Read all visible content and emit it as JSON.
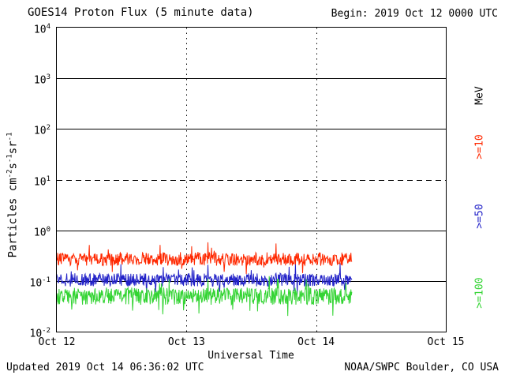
{
  "header": {
    "title": "GOES14 Proton Flux (5 minute data)",
    "begin_label": "Begin: 2019 Oct 12 0000 UTC"
  },
  "footer": {
    "updated": "Updated 2019 Oct 14 06:36:02 UTC",
    "source": "NOAA/SWPC Boulder, CO USA"
  },
  "chart_data": {
    "type": "line",
    "title": "GOES14 Proton Flux (5 minute data)",
    "subtitle": "Begin: 2019 Oct 12 0000 UTC",
    "xlabel": "Universal Time",
    "ylabel": "Particles cm^-2 s^-1 sr^-1",
    "ylabel_segments": [
      {
        "t": "Particles cm"
      },
      {
        "sup": "-2"
      },
      {
        "t": "s"
      },
      {
        "sup": "-1"
      },
      {
        "t": "sr"
      },
      {
        "sup": "-1"
      }
    ],
    "y_scale": "log",
    "ylim": [
      0.01,
      10000
    ],
    "y_ticks": [
      {
        "base": "10",
        "exp": "4"
      },
      {
        "base": "10",
        "exp": "3"
      },
      {
        "base": "10",
        "exp": "2"
      },
      {
        "base": "10",
        "exp": "1"
      },
      {
        "base": "10",
        "exp": "0"
      },
      {
        "base": "10",
        "exp": "-1"
      },
      {
        "base": "10",
        "exp": "-2"
      }
    ],
    "x_ticks": [
      "Oct 12",
      "Oct 13",
      "Oct 14",
      "Oct 15"
    ],
    "x_span_days": 3,
    "grid": {
      "y_solid_exps": [
        3,
        2,
        0,
        -1
      ],
      "y_dashed_exps": [
        1
      ],
      "x_dotted_days": [
        1,
        2
      ]
    },
    "right_axis": {
      "unit_label": "MeV",
      "series_labels": [
        {
          "text": ">=10",
          "color": "#ff2800"
        },
        {
          "text": ">=50",
          "color": "#2222c8"
        },
        {
          "text": ">=100",
          "color": "#33d433"
        }
      ]
    },
    "series": [
      {
        "name": ">=10 MeV",
        "color": "#ff2800",
        "baseline_flux": 0.27,
        "noise_log10": 0.13,
        "points_per_day": 288,
        "end_day": 2.275
      },
      {
        "name": ">=50 MeV",
        "color": "#2222c8",
        "baseline_flux": 0.105,
        "noise_log10": 0.13,
        "points_per_day": 288,
        "end_day": 2.275
      },
      {
        "name": ">=100 MeV",
        "color": "#33d433",
        "baseline_flux": 0.05,
        "noise_log10": 0.17,
        "points_per_day": 288,
        "end_day": 2.275
      }
    ],
    "data_begin": "2019 Oct 12 0000 UTC",
    "data_end": "2019 Oct 14 06:36 UTC"
  }
}
